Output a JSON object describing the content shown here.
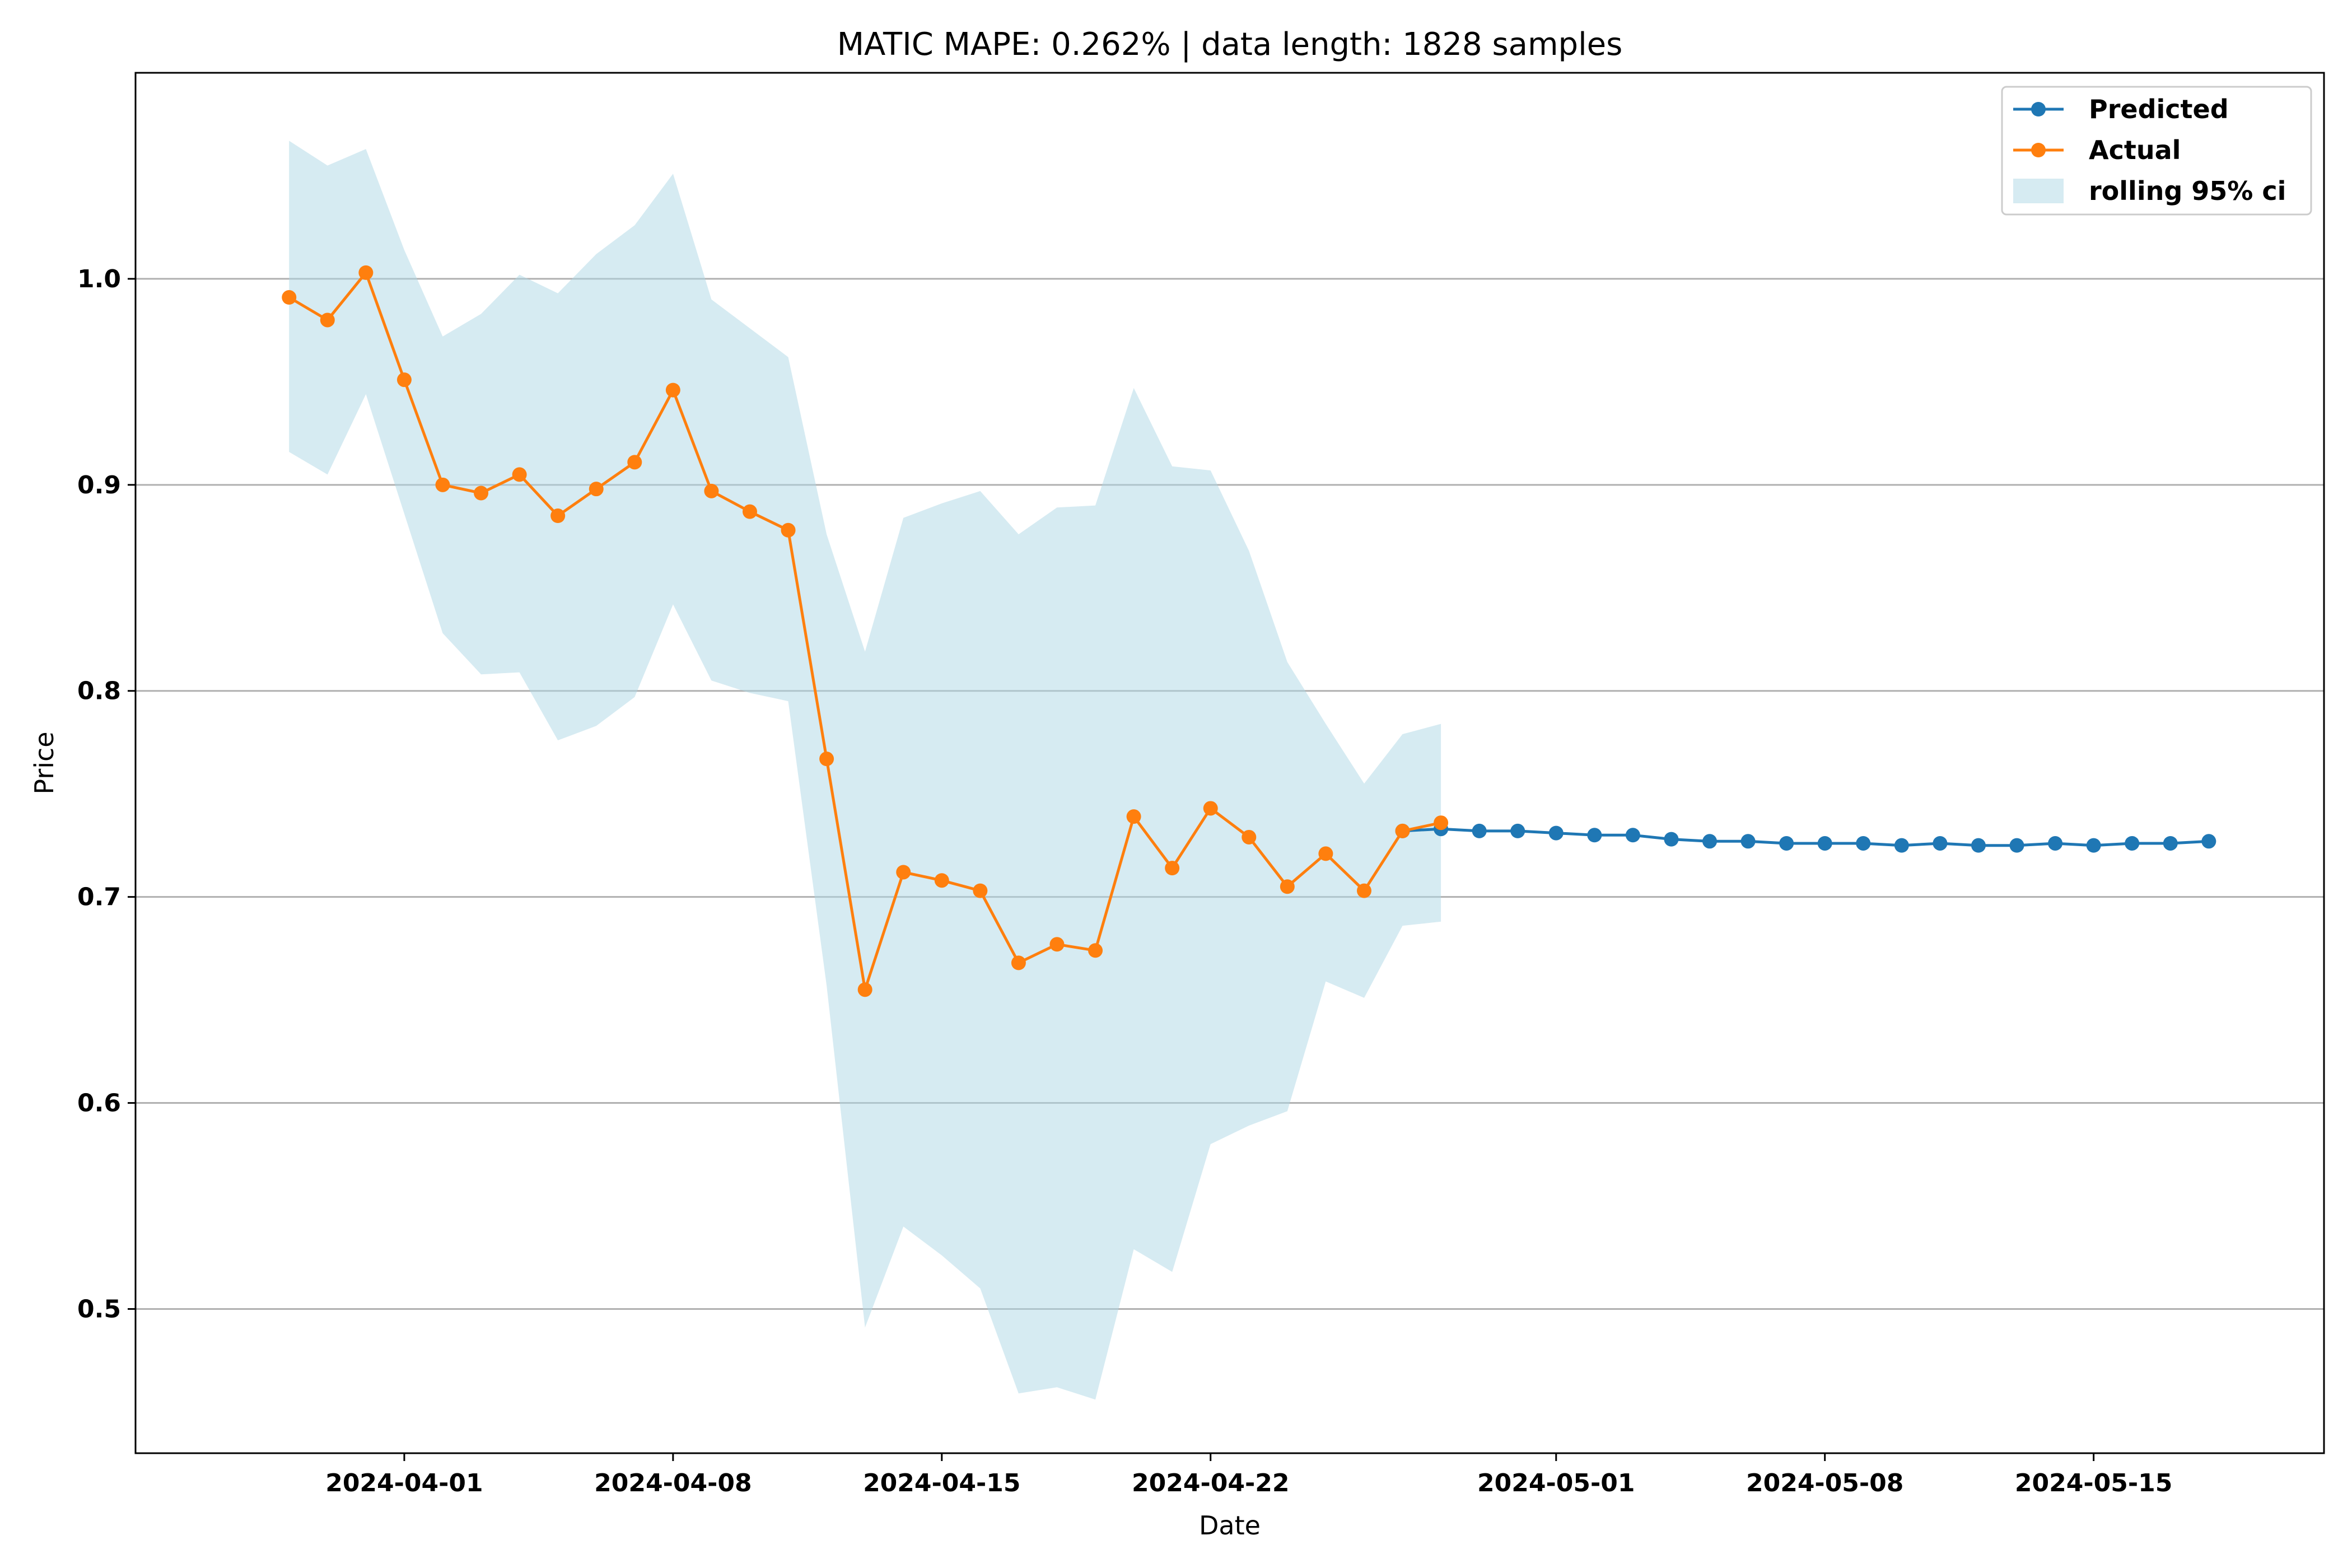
{
  "chart_data": {
    "type": "line",
    "title": "MATIC MAPE: 0.262% | data length: 1828 samples",
    "xlabel": "Date",
    "ylabel": "Price",
    "x_range": [
      "2024-03-25",
      "2024-05-21"
    ],
    "ylim": [
      0.43,
      1.1
    ],
    "x_ticks": [
      "2024-04-01",
      "2024-04-08",
      "2024-04-15",
      "2024-04-22",
      "2024-05-01",
      "2024-05-08",
      "2024-05-15"
    ],
    "y_ticks": [
      "0.5",
      "0.6",
      "0.7",
      "0.8",
      "0.9",
      "1.0"
    ],
    "grid": "horizontal",
    "legend_position": "top-right",
    "colors": {
      "predicted": "#1f77b4",
      "actual": "#ff7f0e",
      "ci": "#add8e6",
      "grid": "#b0b0b0"
    },
    "series": [
      {
        "name": "Predicted",
        "x": [
          "2024-04-27",
          "2024-04-28",
          "2024-04-29",
          "2024-04-30",
          "2024-05-01",
          "2024-05-02",
          "2024-05-03",
          "2024-05-04",
          "2024-05-05",
          "2024-05-06",
          "2024-05-07",
          "2024-05-08",
          "2024-05-09",
          "2024-05-10",
          "2024-05-11",
          "2024-05-12",
          "2024-05-13",
          "2024-05-14",
          "2024-05-15",
          "2024-05-16",
          "2024-05-17",
          "2024-05-18"
        ],
        "values": [
          0.732,
          0.733,
          0.732,
          0.732,
          0.731,
          0.73,
          0.73,
          0.728,
          0.727,
          0.727,
          0.726,
          0.726,
          0.726,
          0.725,
          0.726,
          0.725,
          0.725,
          0.726,
          0.725,
          0.726,
          0.726,
          0.727
        ]
      },
      {
        "name": "Actual",
        "x": [
          "2024-03-29",
          "2024-03-30",
          "2024-03-31",
          "2024-04-01",
          "2024-04-02",
          "2024-04-03",
          "2024-04-04",
          "2024-04-05",
          "2024-04-06",
          "2024-04-07",
          "2024-04-08",
          "2024-04-09",
          "2024-04-10",
          "2024-04-11",
          "2024-04-12",
          "2024-04-13",
          "2024-04-14",
          "2024-04-15",
          "2024-04-16",
          "2024-04-17",
          "2024-04-18",
          "2024-04-19",
          "2024-04-20",
          "2024-04-21",
          "2024-04-22",
          "2024-04-23",
          "2024-04-24",
          "2024-04-25",
          "2024-04-26",
          "2024-04-27",
          "2024-04-28"
        ],
        "values": [
          0.991,
          0.98,
          1.003,
          0.951,
          0.9,
          0.896,
          0.905,
          0.885,
          0.898,
          0.911,
          0.946,
          0.897,
          0.887,
          0.878,
          0.767,
          0.655,
          0.712,
          0.708,
          0.703,
          0.668,
          0.677,
          0.674,
          0.739,
          0.714,
          0.743,
          0.729,
          0.705,
          0.721,
          0.703,
          0.732,
          0.736
        ]
      }
    ],
    "ci": {
      "name": "rolling 95% ci",
      "x": [
        "2024-03-29",
        "2024-03-30",
        "2024-03-31",
        "2024-04-01",
        "2024-04-02",
        "2024-04-03",
        "2024-04-04",
        "2024-04-05",
        "2024-04-06",
        "2024-04-07",
        "2024-04-08",
        "2024-04-09",
        "2024-04-10",
        "2024-04-11",
        "2024-04-12",
        "2024-04-13",
        "2024-04-14",
        "2024-04-15",
        "2024-04-16",
        "2024-04-17",
        "2024-04-18",
        "2024-04-19",
        "2024-04-20",
        "2024-04-21",
        "2024-04-22",
        "2024-04-23",
        "2024-04-24",
        "2024-04-25",
        "2024-04-26",
        "2024-04-27",
        "2024-04-28"
      ],
      "upper": [
        1.067,
        1.055,
        1.063,
        1.014,
        0.972,
        0.983,
        1.002,
        0.993,
        1.012,
        1.026,
        1.051,
        0.99,
        0.976,
        0.962,
        0.876,
        0.819,
        0.884,
        0.891,
        0.897,
        0.876,
        0.889,
        0.89,
        0.947,
        0.909,
        0.907,
        0.868,
        0.814,
        0.784,
        0.755,
        0.779,
        0.784
      ],
      "lower": [
        0.916,
        0.905,
        0.944,
        0.886,
        0.828,
        0.808,
        0.809,
        0.776,
        0.783,
        0.797,
        0.842,
        0.805,
        0.799,
        0.795,
        0.657,
        0.491,
        0.54,
        0.526,
        0.51,
        0.459,
        0.462,
        0.456,
        0.529,
        0.518,
        0.58,
        0.589,
        0.596,
        0.659,
        0.651,
        0.686,
        0.688
      ]
    }
  }
}
